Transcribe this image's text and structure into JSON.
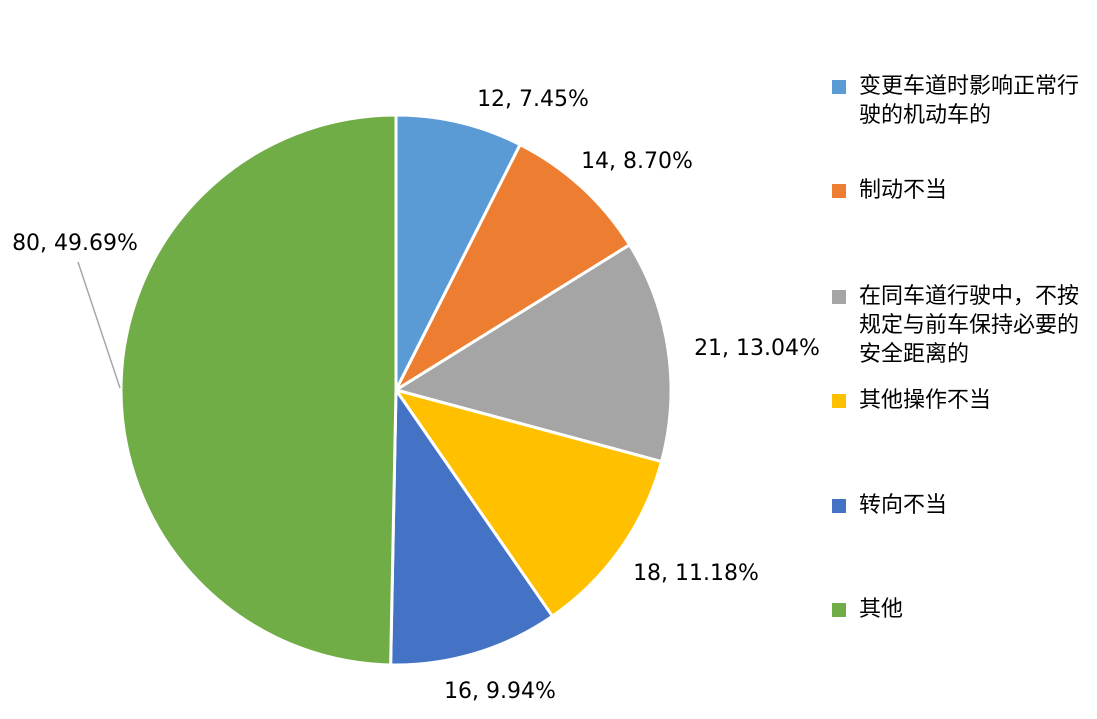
{
  "chart_data": {
    "type": "pie",
    "title": "",
    "legend_position": "right",
    "slices": [
      {
        "label": "变更车道时影响正常行驶的机动车的",
        "value": 12,
        "percent": "7.45%",
        "color": "#5B9BD5",
        "data_label": "12, 7.45%"
      },
      {
        "label": "制动不当",
        "value": 14,
        "percent": "8.70%",
        "color": "#ED7D31",
        "data_label": "14, 8.70%"
      },
      {
        "label": "在同车道行驶中，不按规定与前车保持必要的安全距离的",
        "value": 21,
        "percent": "13.04%",
        "color": "#A5A5A5",
        "data_label": "21, 13.04%"
      },
      {
        "label": "其他操作不当",
        "value": 18,
        "percent": "11.18%",
        "color": "#FFC000",
        "data_label": "18, 11.18%"
      },
      {
        "label": "转向不当",
        "value": 16,
        "percent": "9.94%",
        "color": "#4472C4",
        "data_label": "16, 9.94%"
      },
      {
        "label": "其他",
        "value": 80,
        "percent": "49.69%",
        "color": "#70AD47",
        "data_label": "80, 49.69%"
      }
    ]
  }
}
